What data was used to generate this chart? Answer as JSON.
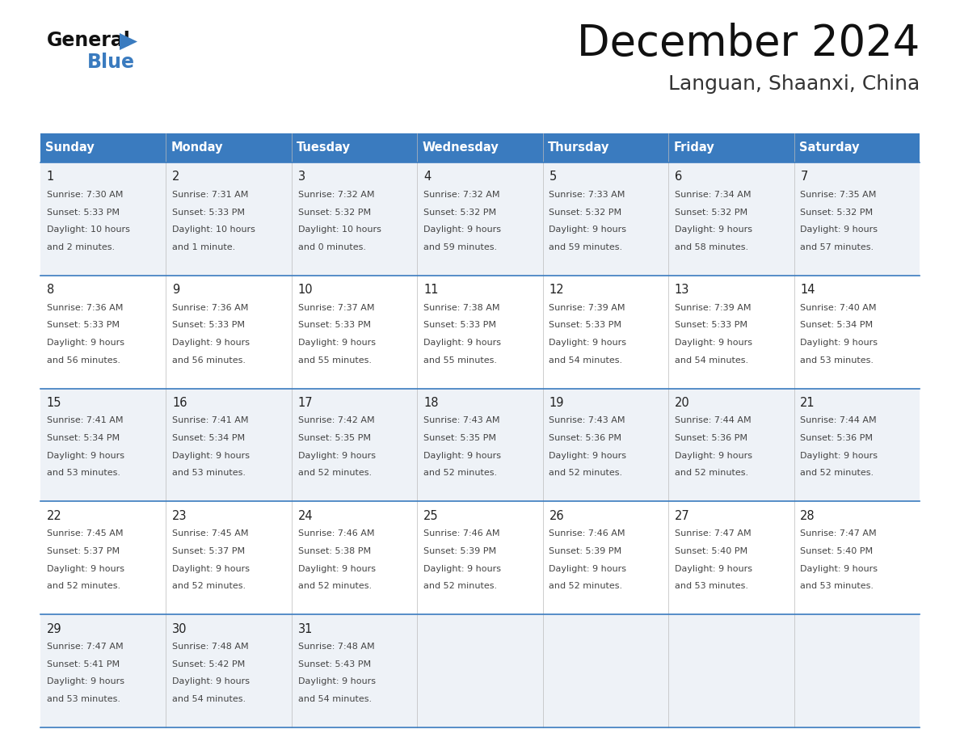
{
  "title": "December 2024",
  "subtitle": "Languan, Shaanxi, China",
  "header_bg_color": "#3a7bbf",
  "header_text_color": "#ffffff",
  "separator_color": "#3a7bbf",
  "row_bg_colors": [
    "#eef2f7",
    "#ffffff"
  ],
  "days_of_week": [
    "Sunday",
    "Monday",
    "Tuesday",
    "Wednesday",
    "Thursday",
    "Friday",
    "Saturday"
  ],
  "weeks": [
    [
      {
        "day": 1,
        "sunrise": "7:30 AM",
        "sunset": "5:33 PM",
        "daylight_line1": "10 hours",
        "daylight_line2": "and 2 minutes."
      },
      {
        "day": 2,
        "sunrise": "7:31 AM",
        "sunset": "5:33 PM",
        "daylight_line1": "10 hours",
        "daylight_line2": "and 1 minute."
      },
      {
        "day": 3,
        "sunrise": "7:32 AM",
        "sunset": "5:32 PM",
        "daylight_line1": "10 hours",
        "daylight_line2": "and 0 minutes."
      },
      {
        "day": 4,
        "sunrise": "7:32 AM",
        "sunset": "5:32 PM",
        "daylight_line1": "9 hours",
        "daylight_line2": "and 59 minutes."
      },
      {
        "day": 5,
        "sunrise": "7:33 AM",
        "sunset": "5:32 PM",
        "daylight_line1": "9 hours",
        "daylight_line2": "and 59 minutes."
      },
      {
        "day": 6,
        "sunrise": "7:34 AM",
        "sunset": "5:32 PM",
        "daylight_line1": "9 hours",
        "daylight_line2": "and 58 minutes."
      },
      {
        "day": 7,
        "sunrise": "7:35 AM",
        "sunset": "5:32 PM",
        "daylight_line1": "9 hours",
        "daylight_line2": "and 57 minutes."
      }
    ],
    [
      {
        "day": 8,
        "sunrise": "7:36 AM",
        "sunset": "5:33 PM",
        "daylight_line1": "9 hours",
        "daylight_line2": "and 56 minutes."
      },
      {
        "day": 9,
        "sunrise": "7:36 AM",
        "sunset": "5:33 PM",
        "daylight_line1": "9 hours",
        "daylight_line2": "and 56 minutes."
      },
      {
        "day": 10,
        "sunrise": "7:37 AM",
        "sunset": "5:33 PM",
        "daylight_line1": "9 hours",
        "daylight_line2": "and 55 minutes."
      },
      {
        "day": 11,
        "sunrise": "7:38 AM",
        "sunset": "5:33 PM",
        "daylight_line1": "9 hours",
        "daylight_line2": "and 55 minutes."
      },
      {
        "day": 12,
        "sunrise": "7:39 AM",
        "sunset": "5:33 PM",
        "daylight_line1": "9 hours",
        "daylight_line2": "and 54 minutes."
      },
      {
        "day": 13,
        "sunrise": "7:39 AM",
        "sunset": "5:33 PM",
        "daylight_line1": "9 hours",
        "daylight_line2": "and 54 minutes."
      },
      {
        "day": 14,
        "sunrise": "7:40 AM",
        "sunset": "5:34 PM",
        "daylight_line1": "9 hours",
        "daylight_line2": "and 53 minutes."
      }
    ],
    [
      {
        "day": 15,
        "sunrise": "7:41 AM",
        "sunset": "5:34 PM",
        "daylight_line1": "9 hours",
        "daylight_line2": "and 53 minutes."
      },
      {
        "day": 16,
        "sunrise": "7:41 AM",
        "sunset": "5:34 PM",
        "daylight_line1": "9 hours",
        "daylight_line2": "and 53 minutes."
      },
      {
        "day": 17,
        "sunrise": "7:42 AM",
        "sunset": "5:35 PM",
        "daylight_line1": "9 hours",
        "daylight_line2": "and 52 minutes."
      },
      {
        "day": 18,
        "sunrise": "7:43 AM",
        "sunset": "5:35 PM",
        "daylight_line1": "9 hours",
        "daylight_line2": "and 52 minutes."
      },
      {
        "day": 19,
        "sunrise": "7:43 AM",
        "sunset": "5:36 PM",
        "daylight_line1": "9 hours",
        "daylight_line2": "and 52 minutes."
      },
      {
        "day": 20,
        "sunrise": "7:44 AM",
        "sunset": "5:36 PM",
        "daylight_line1": "9 hours",
        "daylight_line2": "and 52 minutes."
      },
      {
        "day": 21,
        "sunrise": "7:44 AM",
        "sunset": "5:36 PM",
        "daylight_line1": "9 hours",
        "daylight_line2": "and 52 minutes."
      }
    ],
    [
      {
        "day": 22,
        "sunrise": "7:45 AM",
        "sunset": "5:37 PM",
        "daylight_line1": "9 hours",
        "daylight_line2": "and 52 minutes."
      },
      {
        "day": 23,
        "sunrise": "7:45 AM",
        "sunset": "5:37 PM",
        "daylight_line1": "9 hours",
        "daylight_line2": "and 52 minutes."
      },
      {
        "day": 24,
        "sunrise": "7:46 AM",
        "sunset": "5:38 PM",
        "daylight_line1": "9 hours",
        "daylight_line2": "and 52 minutes."
      },
      {
        "day": 25,
        "sunrise": "7:46 AM",
        "sunset": "5:39 PM",
        "daylight_line1": "9 hours",
        "daylight_line2": "and 52 minutes."
      },
      {
        "day": 26,
        "sunrise": "7:46 AM",
        "sunset": "5:39 PM",
        "daylight_line1": "9 hours",
        "daylight_line2": "and 52 minutes."
      },
      {
        "day": 27,
        "sunrise": "7:47 AM",
        "sunset": "5:40 PM",
        "daylight_line1": "9 hours",
        "daylight_line2": "and 53 minutes."
      },
      {
        "day": 28,
        "sunrise": "7:47 AM",
        "sunset": "5:40 PM",
        "daylight_line1": "9 hours",
        "daylight_line2": "and 53 minutes."
      }
    ],
    [
      {
        "day": 29,
        "sunrise": "7:47 AM",
        "sunset": "5:41 PM",
        "daylight_line1": "9 hours",
        "daylight_line2": "and 53 minutes."
      },
      {
        "day": 30,
        "sunrise": "7:48 AM",
        "sunset": "5:42 PM",
        "daylight_line1": "9 hours",
        "daylight_line2": "and 54 minutes."
      },
      {
        "day": 31,
        "sunrise": "7:48 AM",
        "sunset": "5:43 PM",
        "daylight_line1": "9 hours",
        "daylight_line2": "and 54 minutes."
      },
      null,
      null,
      null,
      null
    ]
  ]
}
